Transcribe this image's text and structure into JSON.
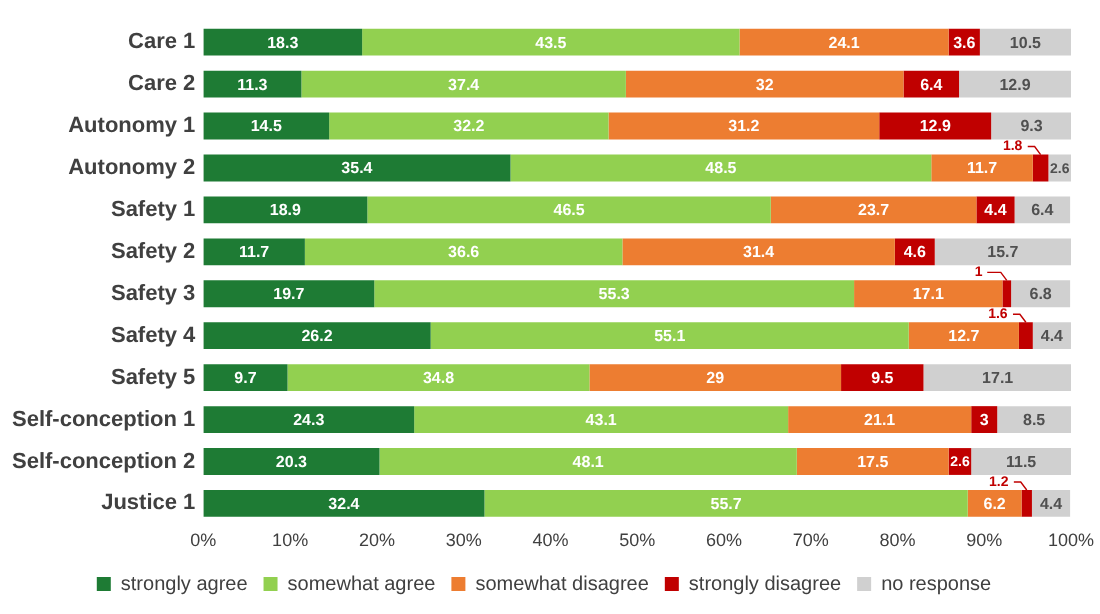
{
  "chart_data": {
    "type": "bar",
    "orientation": "horizontal",
    "stacked": true,
    "data_labels": true,
    "legend": "bottom",
    "grid": false,
    "categories": [
      "Care 1",
      "Care 2",
      "Autonomy 1",
      "Autonomy 2",
      "Safety 1",
      "Safety 2",
      "Safety 3",
      "Safety 4",
      "Safety 5",
      "Self-conception 1",
      "Self-conception 2",
      "Justice 1"
    ],
    "xlim": [
      0,
      100
    ],
    "xticks": [
      {
        "value": 0,
        "label": "0%"
      },
      {
        "value": 10,
        "label": "10%"
      },
      {
        "value": 20,
        "label": "20%"
      },
      {
        "value": 30,
        "label": "30%"
      },
      {
        "value": 40,
        "label": "40%"
      },
      {
        "value": 50,
        "label": "50%"
      },
      {
        "value": 60,
        "label": "60%"
      },
      {
        "value": 70,
        "label": "70%"
      },
      {
        "value": 80,
        "label": "80%"
      },
      {
        "value": 90,
        "label": "90%"
      },
      {
        "value": 100,
        "label": "100%"
      }
    ],
    "series": [
      {
        "name": "strongly agree",
        "color": "#1e7b34",
        "values": [
          18.3,
          11.3,
          14.5,
          35.4,
          18.9,
          11.7,
          19.7,
          26.2,
          9.7,
          24.3,
          20.3,
          32.4
        ]
      },
      {
        "name": "somewhat agree",
        "color": "#92d050",
        "values": [
          43.5,
          37.4,
          32.2,
          48.5,
          46.5,
          36.6,
          55.3,
          55.1,
          34.8,
          43.1,
          48.1,
          55.7
        ]
      },
      {
        "name": "somewhat disagree",
        "color": "#ed7d31",
        "values": [
          24.1,
          32,
          31.2,
          11.7,
          23.7,
          31.4,
          17.1,
          12.7,
          29,
          21.1,
          17.5,
          6.2
        ]
      },
      {
        "name": "strongly disagree",
        "color": "#c00000",
        "values": [
          3.6,
          6.4,
          12.9,
          1.8,
          4.4,
          4.6,
          1,
          1.6,
          9.5,
          3,
          2.6,
          1.2
        ]
      },
      {
        "name": "no response",
        "color": "#d0d0d0",
        "values": [
          10.5,
          12.9,
          9.3,
          2.6,
          6.4,
          15.7,
          6.8,
          4.4,
          17.1,
          8.5,
          11.5,
          4.4
        ]
      }
    ]
  }
}
